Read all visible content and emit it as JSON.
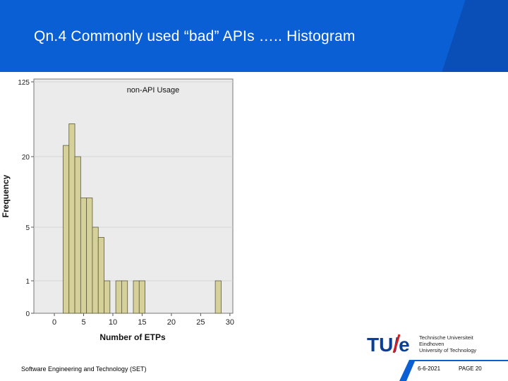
{
  "slide": {
    "title": "Qn.4 Commonly used “bad” APIs ….. Histogram",
    "footer": "Software Engineering and Technology (SET)",
    "date": "6-6-2021",
    "page": "PAGE 20",
    "colors": {
      "header_blue": "#0b5fd4",
      "bar_fill": "#d6d19a",
      "plot_bg": "#ebebeb"
    }
  },
  "logo": {
    "mark": "TU/e",
    "lines": [
      "Technische Universiteit",
      "Eindhoven",
      "University of Technology"
    ]
  },
  "chart_data": {
    "type": "bar",
    "title": "non-API Usage",
    "xlabel": "Number of ETPs",
    "ylabel": "Frequency",
    "x_ticks": [
      0,
      5,
      10,
      15,
      20,
      25,
      30
    ],
    "y_ticks": [
      0,
      1,
      5,
      20,
      125
    ],
    "y_tick_labels": [
      "0",
      "1",
      "5",
      "20",
      "125"
    ],
    "bin_width": 1,
    "bins": [
      {
        "x": 2,
        "value": 30
      },
      {
        "x": 3,
        "value": 55
      },
      {
        "x": 4,
        "value": 20
      },
      {
        "x": 5,
        "value": 10
      },
      {
        "x": 6,
        "value": 10
      },
      {
        "x": 7,
        "value": 5
      },
      {
        "x": 8,
        "value": 4
      },
      {
        "x": 9,
        "value": 1
      },
      {
        "x": 11,
        "value": 1
      },
      {
        "x": 12,
        "value": 1
      },
      {
        "x": 14,
        "value": 1
      },
      {
        "x": 15,
        "value": 1
      },
      {
        "x": 28,
        "value": 1
      }
    ]
  }
}
